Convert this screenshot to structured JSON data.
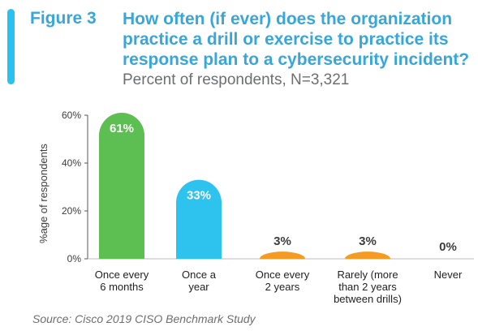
{
  "figure_label": "Figure 3",
  "title": "How often (if ever) does the organization practice a drill or exercise to practice its response plan to a cybersecurity incident?",
  "subtitle": "Percent of respondents, N=3,321",
  "source": "Source: Cisco 2019 CISO Benchmark Study",
  "colors": {
    "accent": "#28c1f0",
    "title": "#39a6d9",
    "green": "#5dbf52",
    "blue": "#2ec3ef",
    "orange": "#f59a23"
  },
  "chart_data": {
    "type": "bar",
    "categories": [
      [
        "Once every",
        "6 months"
      ],
      [
        "Once a",
        "year"
      ],
      [
        "Once every",
        "2 years"
      ],
      [
        "Rarely (more",
        "than 2 years",
        "between drills)"
      ],
      [
        "Never"
      ]
    ],
    "values": [
      61,
      33,
      3,
      3,
      0
    ],
    "data_labels": [
      "61%",
      "33%",
      "3%",
      "3%",
      "0%"
    ],
    "bar_colors": [
      "#5dbf52",
      "#2ec3ef",
      "#f59a23",
      "#f59a23",
      "#f59a23"
    ],
    "ylabel": "%age of respondents",
    "yticks": [
      "0%",
      "20%",
      "40%",
      "60%"
    ],
    "ytick_values": [
      0,
      20,
      40,
      60
    ],
    "ylim": [
      0,
      61
    ],
    "grid": false
  }
}
